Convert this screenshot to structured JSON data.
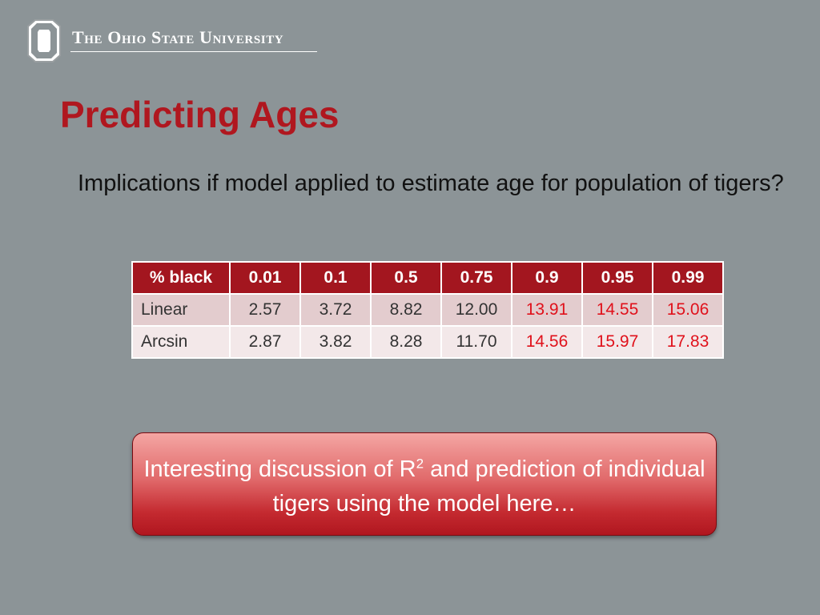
{
  "header": {
    "university_name": "The Ohio State University"
  },
  "slide": {
    "title": "Predicting Ages",
    "bullet": "Implications if model applied to estimate age for population of tigers?"
  },
  "table": {
    "header": [
      "% black",
      "0.01",
      "0.1",
      "0.5",
      "0.75",
      "0.9",
      "0.95",
      "0.99"
    ],
    "rows": [
      {
        "label": "Linear",
        "values": [
          "2.57",
          "3.72",
          "8.82",
          "12.00",
          "13.91",
          "14.55",
          "15.06"
        ]
      },
      {
        "label": "Arcsin",
        "values": [
          "2.87",
          "3.82",
          "8.28",
          "11.70",
          "14.56",
          "15.97",
          "17.83"
        ]
      }
    ],
    "highlighted_value_color": "#e0111b"
  },
  "callout": {
    "text_before": "Interesting discussion of R",
    "superscript": "2",
    "text_after": " and prediction of individual tigers using the model here…"
  },
  "colors": {
    "background": "#8c9497",
    "title": "#b0171f",
    "table_header": "#a3161f"
  }
}
